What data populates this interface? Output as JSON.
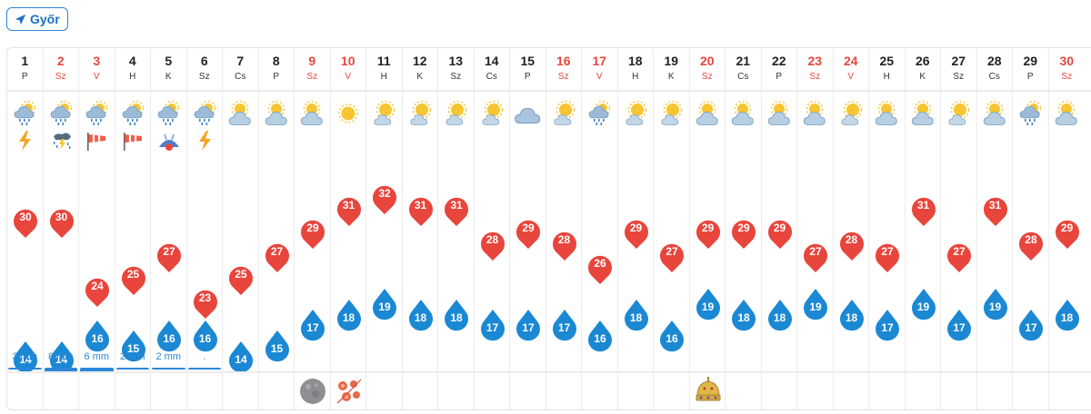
{
  "location": {
    "label": "Győr",
    "icon": "location-arrow-icon"
  },
  "colors": {
    "max": "#e8453c",
    "min": "#1b88d4",
    "weekend": "#e8453c",
    "rain": "#2b87d8"
  },
  "days": [
    {
      "num": "1",
      "name": "P",
      "weekend": false,
      "icon": "rain-cloud-sun",
      "extra": "lightning-icon",
      "max": "30",
      "min": "14",
      "rain": "3 mm",
      "rainLevel": 0.35,
      "event": ""
    },
    {
      "num": "2",
      "name": "Sz",
      "weekend": true,
      "icon": "rain-cloud-sun",
      "extra": "thunderstorm-rain-icon",
      "max": "30",
      "min": "14",
      "rain": "8 mm",
      "rainLevel": 1,
      "event": ""
    },
    {
      "num": "3",
      "name": "V",
      "weekend": true,
      "icon": "rain-cloud-sun",
      "extra": "windsock-icon",
      "max": "24",
      "min": "16",
      "rain": "6 mm",
      "rainLevel": 0.75,
      "event": ""
    },
    {
      "num": "4",
      "name": "H",
      "weekend": false,
      "icon": "rain-cloud-sun",
      "extra": "windsock-icon",
      "max": "25",
      "min": "15",
      "rain": "2 mm",
      "rainLevel": 0.3,
      "event": ""
    },
    {
      "num": "5",
      "name": "K",
      "weekend": false,
      "icon": "rain-cloud-sun",
      "extra": "storm-warning-icon",
      "max": "27",
      "min": "16",
      "rain": "2 mm",
      "rainLevel": 0.3,
      "event": ""
    },
    {
      "num": "6",
      "name": "Sz",
      "weekend": false,
      "icon": "rain-cloud-sun",
      "extra": "lightning-icon",
      "max": "23",
      "min": "16",
      "rain": ".",
      "rainLevel": 0.12,
      "event": ""
    },
    {
      "num": "7",
      "name": "Cs",
      "weekend": false,
      "icon": "sun-cloud",
      "extra": "",
      "max": "25",
      "min": "14",
      "rain": "",
      "rainLevel": 0,
      "event": ""
    },
    {
      "num": "8",
      "name": "P",
      "weekend": false,
      "icon": "sun-cloud",
      "extra": "",
      "max": "27",
      "min": "15",
      "rain": "",
      "rainLevel": 0,
      "event": ""
    },
    {
      "num": "9",
      "name": "Sz",
      "weekend": true,
      "icon": "sun-cloud",
      "extra": "",
      "max": "29",
      "min": "17",
      "rain": "",
      "rainLevel": 0,
      "event": "full-moon-icon"
    },
    {
      "num": "10",
      "name": "V",
      "weekend": true,
      "icon": "sun",
      "extra": "",
      "max": "31",
      "min": "18",
      "rain": "",
      "rainLevel": 0,
      "event": "flower-ornament-icon"
    },
    {
      "num": "11",
      "name": "H",
      "weekend": false,
      "icon": "sun-small-cloud",
      "extra": "",
      "max": "32",
      "min": "19",
      "rain": "",
      "rainLevel": 0,
      "event": ""
    },
    {
      "num": "12",
      "name": "K",
      "weekend": false,
      "icon": "sun-small-cloud",
      "extra": "",
      "max": "31",
      "min": "18",
      "rain": "",
      "rainLevel": 0,
      "event": ""
    },
    {
      "num": "13",
      "name": "Sz",
      "weekend": false,
      "icon": "sun-small-cloud",
      "extra": "",
      "max": "31",
      "min": "18",
      "rain": "",
      "rainLevel": 0,
      "event": ""
    },
    {
      "num": "14",
      "name": "Cs",
      "weekend": false,
      "icon": "sun-small-cloud",
      "extra": "",
      "max": "28",
      "min": "17",
      "rain": "",
      "rainLevel": 0,
      "event": ""
    },
    {
      "num": "15",
      "name": "P",
      "weekend": false,
      "icon": "cloud",
      "extra": "",
      "max": "29",
      "min": "17",
      "rain": "",
      "rainLevel": 0,
      "event": ""
    },
    {
      "num": "16",
      "name": "Sz",
      "weekend": true,
      "icon": "sun-small-cloud",
      "extra": "",
      "max": "28",
      "min": "17",
      "rain": "",
      "rainLevel": 0,
      "event": ""
    },
    {
      "num": "17",
      "name": "V",
      "weekend": true,
      "icon": "rain-cloud-sun",
      "extra": "",
      "max": "26",
      "min": "16",
      "rain": "",
      "rainLevel": 0,
      "event": ""
    },
    {
      "num": "18",
      "name": "H",
      "weekend": false,
      "icon": "sun-small-cloud",
      "extra": "",
      "max": "29",
      "min": "18",
      "rain": "",
      "rainLevel": 0,
      "event": ""
    },
    {
      "num": "19",
      "name": "K",
      "weekend": false,
      "icon": "sun-small-cloud",
      "extra": "",
      "max": "27",
      "min": "16",
      "rain": "",
      "rainLevel": 0,
      "event": ""
    },
    {
      "num": "20",
      "name": "Sz",
      "weekend": true,
      "icon": "sun-cloud",
      "extra": "",
      "max": "29",
      "min": "19",
      "rain": "",
      "rainLevel": 0,
      "event": "holy-crown-icon"
    },
    {
      "num": "21",
      "name": "Cs",
      "weekend": false,
      "icon": "sun-cloud",
      "extra": "",
      "max": "29",
      "min": "18",
      "rain": "",
      "rainLevel": 0,
      "event": ""
    },
    {
      "num": "22",
      "name": "P",
      "weekend": false,
      "icon": "sun-cloud",
      "extra": "",
      "max": "29",
      "min": "18",
      "rain": "",
      "rainLevel": 0,
      "event": ""
    },
    {
      "num": "23",
      "name": "Sz",
      "weekend": true,
      "icon": "sun-cloud",
      "extra": "",
      "max": "27",
      "min": "19",
      "rain": "",
      "rainLevel": 0,
      "event": ""
    },
    {
      "num": "24",
      "name": "V",
      "weekend": true,
      "icon": "sun-small-cloud",
      "extra": "",
      "max": "28",
      "min": "18",
      "rain": "",
      "rainLevel": 0,
      "event": ""
    },
    {
      "num": "25",
      "name": "H",
      "weekend": false,
      "icon": "sun-cloud",
      "extra": "",
      "max": "27",
      "min": "17",
      "rain": "",
      "rainLevel": 0,
      "event": ""
    },
    {
      "num": "26",
      "name": "K",
      "weekend": false,
      "icon": "sun-cloud",
      "extra": "",
      "max": "31",
      "min": "19",
      "rain": "",
      "rainLevel": 0,
      "event": ""
    },
    {
      "num": "27",
      "name": "Sz",
      "weekend": false,
      "icon": "sun-small-cloud",
      "extra": "",
      "max": "27",
      "min": "17",
      "rain": "",
      "rainLevel": 0,
      "event": ""
    },
    {
      "num": "28",
      "name": "Cs",
      "weekend": false,
      "icon": "sun-cloud",
      "extra": "",
      "max": "31",
      "min": "19",
      "rain": "",
      "rainLevel": 0,
      "event": ""
    },
    {
      "num": "29",
      "name": "P",
      "weekend": false,
      "icon": "rain-cloud-sun",
      "extra": "",
      "max": "28",
      "min": "17",
      "rain": "",
      "rainLevel": 0,
      "event": ""
    },
    {
      "num": "30",
      "name": "Sz",
      "weekend": true,
      "icon": "sun-cloud",
      "extra": "",
      "max": "29",
      "min": "18",
      "rain": "",
      "rainLevel": 0,
      "event": ""
    }
  ]
}
